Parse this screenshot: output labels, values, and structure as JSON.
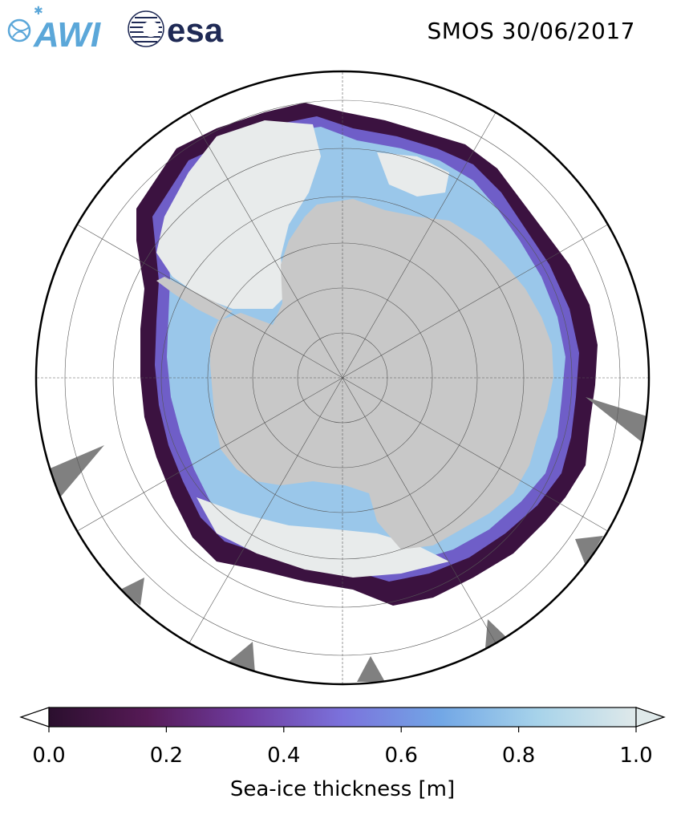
{
  "header": {
    "title": "SMOS 30/06/2017",
    "logos": [
      {
        "name": "AWI",
        "text": "AWI",
        "color": "#5ba7d9"
      },
      {
        "name": "esa",
        "text": "esa",
        "color": "#1f2a55"
      }
    ]
  },
  "map": {
    "projection": "south-polar-stereographic",
    "latitude_circles": [
      -80,
      -70,
      -60,
      -50,
      -40
    ],
    "meridian_step_deg": 30,
    "colors": {
      "land": "#c8c8c8",
      "ocean": "#ffffff",
      "thick_ice": "#e8ebeb",
      "masked": "#808080",
      "boundary": "#000000"
    }
  },
  "colorbar": {
    "label": "Sea-ice thickness [m]",
    "ticks": [
      "0.0",
      "0.2",
      "0.4",
      "0.6",
      "0.8",
      "1.0"
    ],
    "vmin": 0.0,
    "vmax": 1.0,
    "extend": "both",
    "colormap_stops": [
      "#2b0f2e",
      "#561a56",
      "#6f3ca0",
      "#7b72dc",
      "#72a7e6",
      "#a7d3ea",
      "#dfe9ea"
    ]
  }
}
